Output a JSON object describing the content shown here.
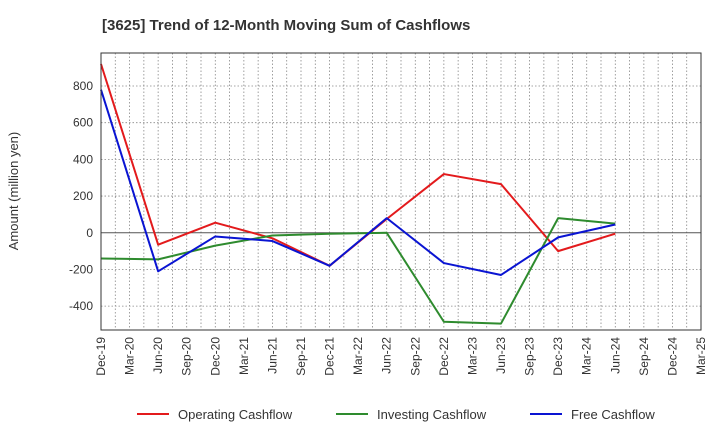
{
  "chart_data": {
    "type": "line",
    "title": "[3625]  Trend of 12-Month Moving Sum of Cashflows",
    "xlabel": "",
    "ylabel": "Amount (million yen)",
    "categories": [
      "Dec-19",
      "Mar-20",
      "Jun-20",
      "Sep-20",
      "Dec-20",
      "Mar-21",
      "Jun-21",
      "Sep-21",
      "Dec-21",
      "Mar-22",
      "Jun-22",
      "Sep-22",
      "Dec-22",
      "Mar-23",
      "Jun-23",
      "Sep-23",
      "Dec-23",
      "Mar-24",
      "Jun-24",
      "Sep-24",
      "Dec-24",
      "Mar-25"
    ],
    "ylim": [
      -530,
      980
    ],
    "yticks": [
      800,
      600,
      400,
      200,
      0,
      -200,
      -400
    ],
    "grid": true,
    "legend_position": "bottom",
    "series": [
      {
        "name": "Operating Cashflow",
        "color": "#e31a1c",
        "values": [
          920,
          null,
          -65,
          null,
          55,
          null,
          -30,
          null,
          -180,
          null,
          75,
          null,
          320,
          null,
          265,
          null,
          -100,
          null,
          -5,
          null,
          null,
          null
        ]
      },
      {
        "name": "Investing Cashflow",
        "color": "#2e8b2e",
        "values": [
          -140,
          null,
          -145,
          null,
          -70,
          null,
          -15,
          null,
          -5,
          null,
          0,
          null,
          -485,
          null,
          -495,
          null,
          80,
          null,
          50,
          null,
          null,
          null
        ]
      },
      {
        "name": "Free Cashflow",
        "color": "#0a14d2",
        "values": [
          780,
          null,
          -210,
          null,
          -20,
          null,
          -45,
          null,
          -180,
          null,
          80,
          null,
          -165,
          null,
          -230,
          null,
          -25,
          null,
          45,
          null,
          null,
          null
        ]
      }
    ]
  }
}
